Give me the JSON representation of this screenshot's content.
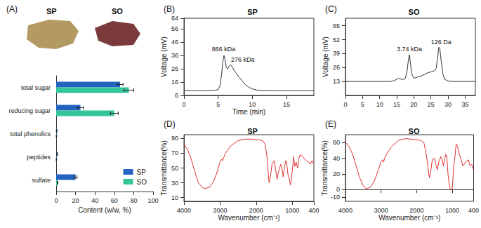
{
  "chart_data": [
    {
      "panel": "(A)",
      "type": "bar",
      "orientation": "horizontal",
      "photo_labels": [
        "SP",
        "SO"
      ],
      "categories": [
        "total sugar",
        "reducing sugar",
        "total phenolics",
        "peptides",
        "sulfate"
      ],
      "series": [
        {
          "name": "SP",
          "color": "#2563c0",
          "values": [
            66,
            25,
            0.5,
            1,
            20
          ],
          "errors": [
            3,
            3,
            0.3,
            0.5,
            1.5
          ]
        },
        {
          "name": "SO",
          "color": "#34c69a",
          "values": [
            75,
            60,
            0.3,
            0.3,
            1.5
          ],
          "errors": [
            5,
            4,
            0.2,
            0.2,
            0.3
          ]
        }
      ],
      "xlabel": "Content (w/w, %)",
      "xlim": [
        0,
        100
      ],
      "xticks": [
        0,
        20,
        40,
        60,
        80,
        100
      ],
      "legend": "lower right",
      "grid": false
    },
    {
      "panel": "(B)",
      "type": "line",
      "title": "SP",
      "color": "#333333",
      "x": [
        0,
        1,
        2,
        3,
        4,
        4.5,
        5,
        5.3,
        5.5,
        5.7,
        5.85,
        6,
        6.2,
        6.4,
        6.6,
        6.8,
        7,
        7.3,
        7.6,
        8,
        8.5,
        9,
        9.5,
        10,
        10.5,
        11,
        12,
        13,
        14,
        15,
        16,
        17,
        18,
        19
      ],
      "values": [
        9.5,
        9.5,
        9.5,
        9.5,
        9.6,
        9.8,
        10.5,
        14,
        22,
        32,
        36,
        33,
        27,
        26,
        28,
        29,
        28,
        25,
        23,
        20,
        17,
        14,
        12,
        11,
        10.2,
        9.8,
        9.6,
        9.5,
        9.5,
        9.5,
        9.5,
        9.5,
        9.5,
        9.5
      ],
      "xlabel": "Time (min)",
      "ylabel": "Voltage (mV)",
      "xlim": [
        0,
        19
      ],
      "xticks": [
        0,
        5,
        10,
        15
      ],
      "ylim": [
        6,
        64
      ],
      "yticks": [
        6,
        16,
        26,
        36,
        46,
        56,
        64
      ],
      "annotations": [
        {
          "text": "866 kDa",
          "x": 5.8,
          "y": 41
        },
        {
          "text": "276 kDa",
          "x": 8.6,
          "y": 33
        }
      ],
      "grid": false
    },
    {
      "panel": "(C)",
      "type": "line",
      "title": "SO",
      "color": "#333333",
      "x": [
        0,
        5,
        10,
        13,
        14,
        15,
        15.5,
        16,
        16.5,
        17,
        17.5,
        18,
        18.4,
        18.7,
        19,
        19.4,
        20,
        21,
        22,
        23,
        24,
        25,
        26,
        26.5,
        27,
        27.3,
        27.6,
        28,
        28.5,
        29,
        30,
        31,
        33,
        35,
        38
      ],
      "values": [
        13,
        13,
        13,
        13,
        13.5,
        15,
        16,
        15.5,
        15,
        15,
        16,
        22,
        33,
        38,
        30,
        20,
        16,
        17,
        18,
        19.5,
        21,
        22,
        23,
        25,
        36,
        45,
        44,
        32,
        20,
        15,
        13.5,
        13,
        13,
        13,
        13
      ],
      "ylabel": "Voltage (mV)",
      "xlim": [
        0,
        38
      ],
      "xticks": [
        0,
        5,
        10,
        15,
        20,
        25,
        30,
        35
      ],
      "ylim": [
        0,
        72
      ],
      "yticks": [
        13,
        26,
        39,
        52,
        65
      ],
      "annotations": [
        {
          "text": "3.74 kDa",
          "x": 18.7,
          "y": 43
        },
        {
          "text": "126 Da",
          "x": 28,
          "y": 50
        }
      ],
      "grid": false
    },
    {
      "panel": "(D)",
      "type": "line",
      "title": "SP",
      "color": "#e03030",
      "x": [
        4000,
        3900,
        3800,
        3700,
        3600,
        3500,
        3420,
        3300,
        3200,
        3100,
        3000,
        2960,
        2930,
        2900,
        2850,
        2700,
        2500,
        2300,
        2100,
        1900,
        1800,
        1750,
        1700,
        1660,
        1640,
        1600,
        1560,
        1500,
        1460,
        1420,
        1380,
        1320,
        1280,
        1250,
        1220,
        1180,
        1150,
        1120,
        1080,
        1050,
        1000,
        960,
        930,
        890,
        850,
        820,
        780,
        700,
        620,
        550,
        500,
        450,
        400
      ],
      "values": [
        82,
        75,
        62,
        45,
        30,
        24,
        22,
        24,
        30,
        42,
        58,
        62,
        60,
        64,
        70,
        80,
        87,
        89,
        89,
        88,
        86,
        82,
        65,
        40,
        30,
        40,
        55,
        60,
        48,
        35,
        45,
        55,
        48,
        38,
        50,
        60,
        55,
        42,
        35,
        27,
        45,
        65,
        52,
        58,
        50,
        62,
        68,
        65,
        60,
        58,
        55,
        60,
        55
      ],
      "xlabel": "Wavenumber (cm⁻¹)",
      "ylabel": "Transmittance(%)",
      "xlim": [
        4000,
        400
      ],
      "xticks": [
        4000,
        3000,
        2000,
        1000,
        400
      ],
      "ylim": [
        5,
        95
      ],
      "yticks": [
        10,
        30,
        50,
        70,
        90
      ],
      "grid": false
    },
    {
      "panel": "(E)",
      "type": "line",
      "title": "SO",
      "color": "#e03030",
      "x": [
        4000,
        3900,
        3800,
        3700,
        3600,
        3500,
        3420,
        3300,
        3200,
        3100,
        3000,
        2960,
        2930,
        2900,
        2850,
        2700,
        2500,
        2300,
        2100,
        1900,
        1800,
        1750,
        1700,
        1660,
        1640,
        1600,
        1560,
        1500,
        1460,
        1420,
        1380,
        1320,
        1280,
        1250,
        1220,
        1180,
        1150,
        1120,
        1080,
        1050,
        1000,
        960,
        930,
        890,
        850,
        820,
        780,
        700,
        620,
        550,
        500,
        450,
        400
      ],
      "values": [
        60,
        55,
        45,
        30,
        15,
        5,
        1,
        3,
        10,
        22,
        36,
        38,
        35,
        40,
        45,
        55,
        63,
        65,
        64,
        63,
        60,
        50,
        35,
        20,
        15,
        25,
        38,
        40,
        32,
        25,
        35,
        42,
        38,
        30,
        38,
        45,
        40,
        20,
        5,
        0,
        0,
        30,
        40,
        58,
        55,
        48,
        42,
        30,
        35,
        38,
        30,
        32,
        25
      ],
      "xlabel": "Wavenumber (cm⁻¹)",
      "ylabel": "Transmittance(%)",
      "xlim": [
        4000,
        400
      ],
      "xticks": [
        4000,
        3000,
        2000,
        1000,
        400
      ],
      "ylim": [
        -15,
        70
      ],
      "yticks": [
        -10,
        0,
        20,
        40,
        60
      ],
      "grid": false
    }
  ]
}
